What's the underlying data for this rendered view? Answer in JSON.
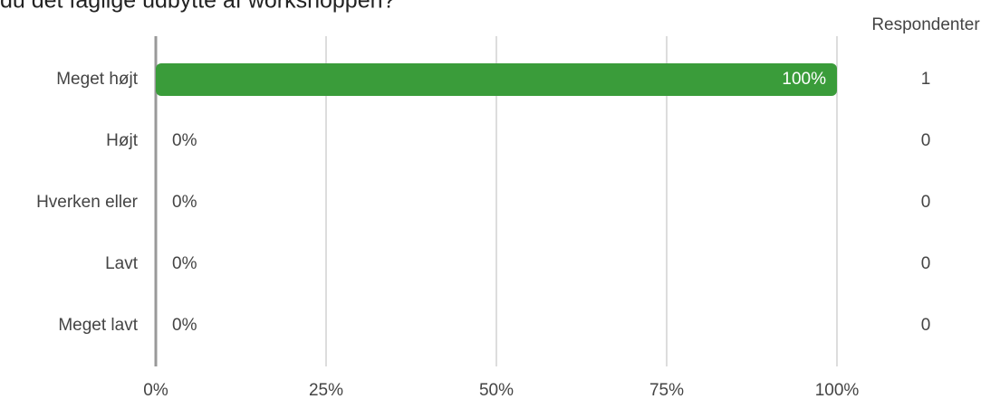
{
  "chart_data": {
    "type": "bar",
    "orientation": "horizontal",
    "title": "du det faglige udbytte af workshoppen?",
    "categories": [
      "Meget højt",
      "Højt",
      "Hverken eller",
      "Lavt",
      "Meget lavt"
    ],
    "values": [
      100,
      0,
      0,
      0,
      0
    ],
    "value_labels": [
      "100%",
      "0%",
      "0%",
      "0%",
      "0%"
    ],
    "color": "#3a9c3a",
    "xlim": [
      0,
      100
    ],
    "xticks": [
      {
        "value": 0,
        "label": "0%"
      },
      {
        "value": 25,
        "label": "25%"
      },
      {
        "value": 50,
        "label": "50%"
      },
      {
        "value": 75,
        "label": "75%"
      },
      {
        "value": 100,
        "label": "100%"
      }
    ],
    "grid": true,
    "respondents_header": "Respondenter",
    "respondents": [
      1,
      0,
      0,
      0,
      0
    ]
  }
}
